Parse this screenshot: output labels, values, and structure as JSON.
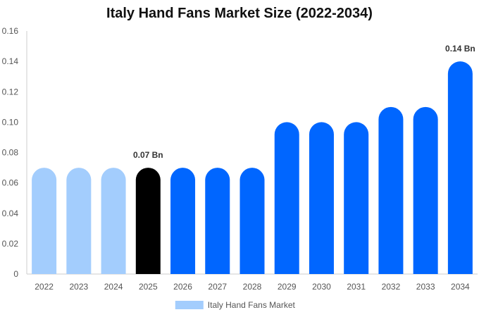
{
  "chart_data": {
    "type": "bar",
    "title": "Italy Hand Fans Market Size (2022-2034)",
    "xlabel": "",
    "ylabel": "",
    "categories": [
      "2022",
      "2023",
      "2024",
      "2025",
      "2026",
      "2027",
      "2028",
      "2029",
      "2030",
      "2031",
      "2032",
      "2033",
      "2034"
    ],
    "series": [
      {
        "name": "Italy Hand Fans Market",
        "values": [
          0.07,
          0.07,
          0.07,
          0.07,
          0.07,
          0.07,
          0.07,
          0.1,
          0.1,
          0.1,
          0.11,
          0.11,
          0.14
        ]
      }
    ],
    "ylim": [
      0,
      0.16
    ],
    "yticks": [
      "0",
      "0.02",
      "0.04",
      "0.06",
      "0.08",
      "0.10",
      "0.12",
      "0.14",
      "0.16"
    ],
    "data_labels": [
      {
        "category": "2025",
        "text": "0.07 Bn"
      },
      {
        "category": "2034",
        "text": "0.14 Bn"
      }
    ],
    "bar_colors": {
      "historical": "#a3cdfd",
      "current": "#000000",
      "forecast": "#0066ff"
    },
    "legend": {
      "placement": "bottom-center",
      "swatch_color": "#a3cdfd"
    },
    "grid": false
  }
}
